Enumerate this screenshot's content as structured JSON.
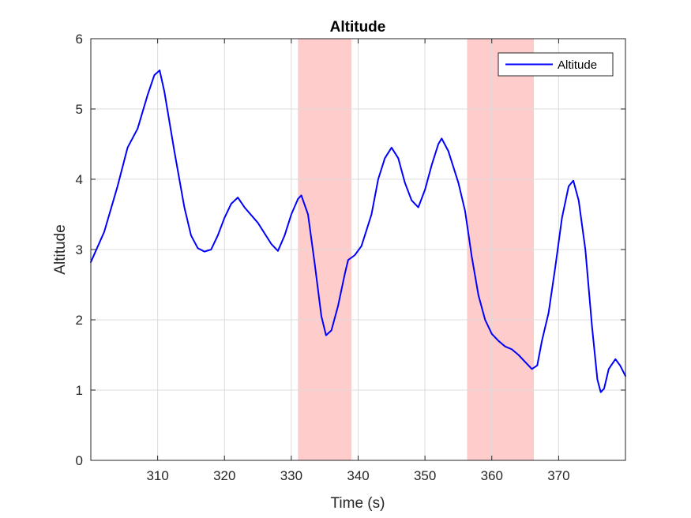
{
  "chart_data": {
    "type": "line",
    "title": "Altitude",
    "xlabel": "Time (s)",
    "ylabel": "Altitude",
    "xlim": [
      300,
      380
    ],
    "ylim": [
      0,
      6
    ],
    "xticks": [
      310,
      320,
      330,
      340,
      350,
      360,
      370
    ],
    "yticks": [
      0,
      1,
      2,
      3,
      4,
      5,
      6
    ],
    "grid": true,
    "legend_position": "top-right",
    "series": [
      {
        "name": "Altitude",
        "color": "#0000ff",
        "points": [
          [
            300,
            2.82
          ],
          [
            302,
            3.25
          ],
          [
            304,
            3.9
          ],
          [
            305.5,
            4.45
          ],
          [
            307,
            4.72
          ],
          [
            308.5,
            5.2
          ],
          [
            309.5,
            5.48
          ],
          [
            310.3,
            5.55
          ],
          [
            311,
            5.25
          ],
          [
            312.5,
            4.4
          ],
          [
            314,
            3.6
          ],
          [
            315,
            3.2
          ],
          [
            316,
            3.02
          ],
          [
            317,
            2.97
          ],
          [
            318,
            3.0
          ],
          [
            319,
            3.2
          ],
          [
            320,
            3.45
          ],
          [
            321,
            3.65
          ],
          [
            322,
            3.74
          ],
          [
            323,
            3.6
          ],
          [
            325,
            3.38
          ],
          [
            327,
            3.08
          ],
          [
            328,
            2.98
          ],
          [
            329,
            3.2
          ],
          [
            330,
            3.5
          ],
          [
            331,
            3.72
          ],
          [
            331.5,
            3.77
          ],
          [
            332.5,
            3.5
          ],
          [
            333.5,
            2.8
          ],
          [
            334.5,
            2.05
          ],
          [
            335.2,
            1.78
          ],
          [
            336,
            1.85
          ],
          [
            337,
            2.2
          ],
          [
            338,
            2.65
          ],
          [
            338.5,
            2.85
          ],
          [
            339.5,
            2.92
          ],
          [
            340.5,
            3.05
          ],
          [
            342,
            3.5
          ],
          [
            343,
            4.0
          ],
          [
            344,
            4.3
          ],
          [
            345,
            4.45
          ],
          [
            346,
            4.3
          ],
          [
            347,
            3.95
          ],
          [
            348,
            3.7
          ],
          [
            349,
            3.6
          ],
          [
            350,
            3.85
          ],
          [
            351,
            4.2
          ],
          [
            352,
            4.5
          ],
          [
            352.5,
            4.58
          ],
          [
            353.5,
            4.4
          ],
          [
            355,
            3.95
          ],
          [
            356,
            3.55
          ],
          [
            357,
            2.9
          ],
          [
            358,
            2.35
          ],
          [
            359,
            2.0
          ],
          [
            360,
            1.8
          ],
          [
            361,
            1.7
          ],
          [
            362,
            1.62
          ],
          [
            363,
            1.58
          ],
          [
            364,
            1.5
          ],
          [
            365,
            1.4
          ],
          [
            366,
            1.3
          ],
          [
            366.8,
            1.35
          ],
          [
            367.5,
            1.7
          ],
          [
            368.5,
            2.1
          ],
          [
            369.5,
            2.75
          ],
          [
            370.5,
            3.45
          ],
          [
            371.5,
            3.9
          ],
          [
            372.2,
            3.98
          ],
          [
            373,
            3.7
          ],
          [
            374,
            3.0
          ],
          [
            375,
            1.9
          ],
          [
            375.8,
            1.15
          ],
          [
            376.3,
            0.97
          ],
          [
            376.8,
            1.02
          ],
          [
            377.5,
            1.3
          ],
          [
            378.5,
            1.44
          ],
          [
            379.2,
            1.35
          ],
          [
            380,
            1.2
          ]
        ]
      }
    ],
    "highlight_bands": [
      {
        "x_range": [
          331,
          339
        ],
        "color": "#ffcccc"
      },
      {
        "x_range": [
          356.3,
          366.3
        ],
        "color": "#ffcccc"
      }
    ]
  }
}
